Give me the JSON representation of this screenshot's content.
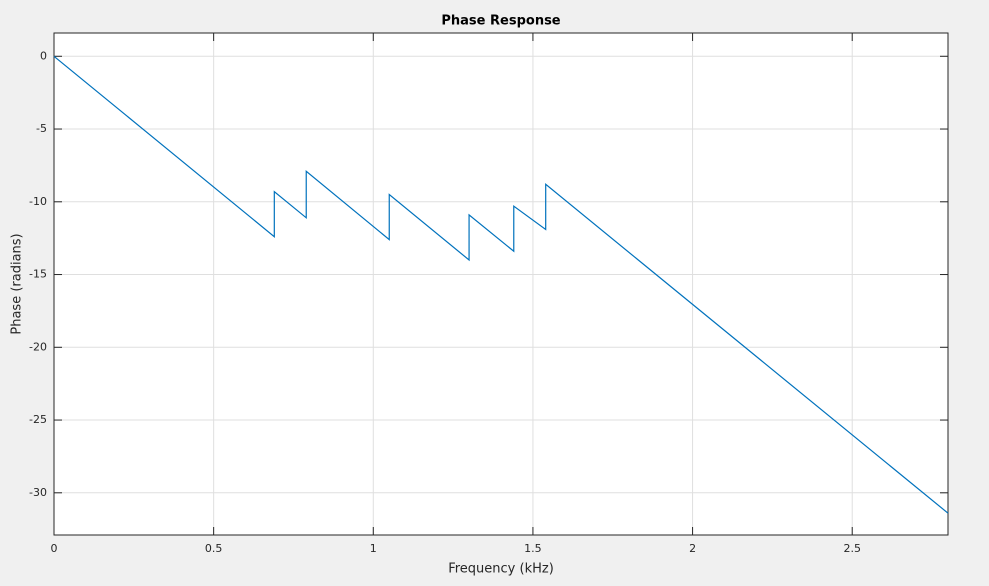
{
  "chart_data": {
    "type": "line",
    "title": "Phase Response",
    "x_label": "Frequency (kHz)",
    "y_label": "Phase (radians)",
    "series": [
      {
        "name": "Phase",
        "color": "#0072bd",
        "x": [
          0,
          0.69,
          0.69,
          0.79,
          0.79,
          1.05,
          1.05,
          1.3,
          1.3,
          1.44,
          1.44,
          1.54,
          1.54,
          2.8
        ],
        "values": [
          0,
          -12.4,
          -9.3,
          -11.1,
          -7.9,
          -12.6,
          -9.5,
          -14.0,
          -10.9,
          -13.4,
          -10.3,
          -11.9,
          -8.8,
          -31.4
        ]
      }
    ],
    "xlim": [
      0,
      2.8
    ],
    "xticks": [
      0,
      0.5,
      1,
      1.5,
      2,
      2.5
    ],
    "ylim": [
      -32.9,
      1.6
    ],
    "yticks": [
      -30,
      -25,
      -20,
      -15,
      -10,
      -5,
      0
    ],
    "grid": true
  }
}
